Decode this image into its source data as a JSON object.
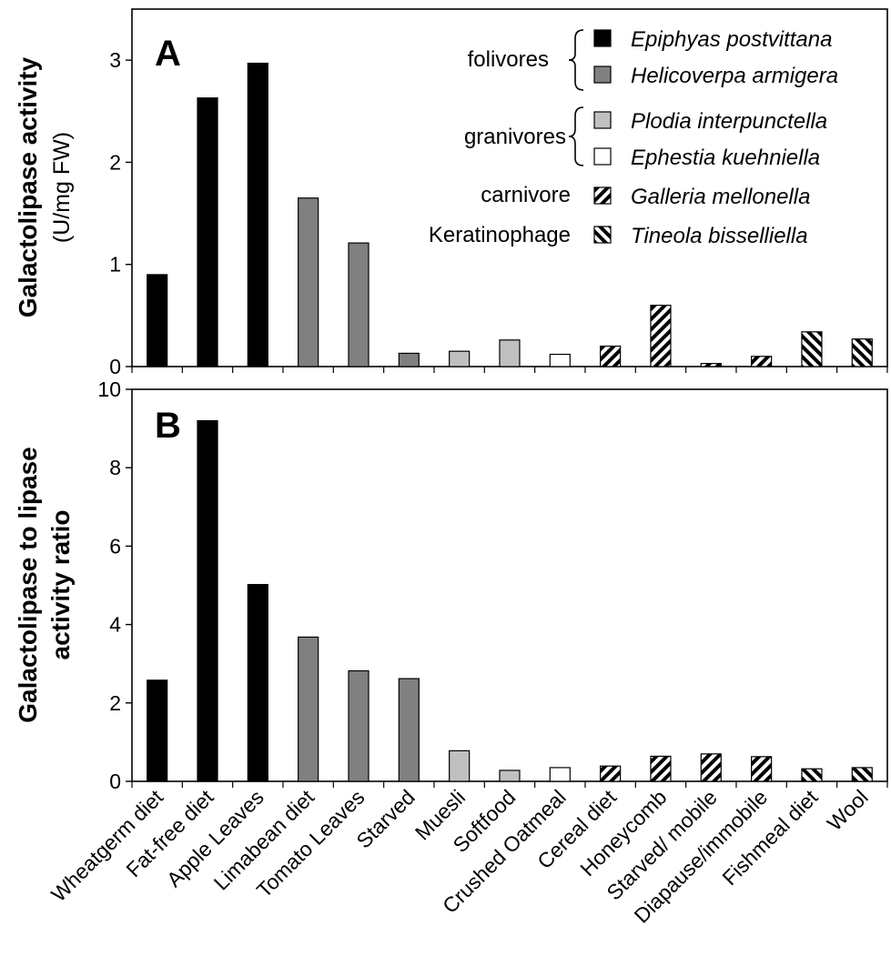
{
  "chart_data": [
    {
      "panel": "A",
      "type": "bar",
      "ylabel_line1": "Galactolipase activity",
      "ylabel_line2": "(U/mg FW)",
      "ylim": [
        0,
        3.5
      ],
      "yticks": [
        0,
        1,
        2,
        3
      ],
      "categories": [
        "Wheatgerm diet",
        "Fat-free diet",
        "Apple Leaves",
        "Limabean diet",
        "Tomato Leaves",
        "Starved",
        "Muesli",
        "Softfood",
        "Crushed Oatmeal",
        "Cereal diet",
        "Honeycomb",
        "Starved/ mobile",
        "Diapause/immobile",
        "Fishmeal diet",
        "Wool"
      ],
      "values": [
        0.9,
        2.63,
        2.97,
        1.65,
        1.21,
        0.13,
        0.15,
        0.26,
        0.12,
        0.2,
        0.6,
        0.03,
        0.1,
        0.34,
        0.27
      ],
      "series_index": [
        0,
        0,
        0,
        1,
        1,
        1,
        2,
        2,
        3,
        4,
        4,
        4,
        4,
        5,
        5
      ]
    },
    {
      "panel": "B",
      "type": "bar",
      "ylabel_line1": "Galactolipase to lipase",
      "ylabel_line2": "activity ratio",
      "ylim": [
        0,
        10
      ],
      "yticks": [
        0,
        2,
        4,
        6,
        8,
        10
      ],
      "categories": [
        "Wheatgerm diet",
        "Fat-free diet",
        "Apple Leaves",
        "Limabean diet",
        "Tomato Leaves",
        "Starved",
        "Muesli",
        "Softfood",
        "Crushed Oatmeal",
        "Cereal diet",
        "Honeycomb",
        "Starved/ mobile",
        "Diapause/immobile",
        "Fishmeal diet",
        "Wool"
      ],
      "values": [
        2.58,
        9.2,
        5.02,
        3.68,
        2.82,
        2.62,
        0.78,
        0.28,
        0.35,
        0.39,
        0.64,
        0.7,
        0.63,
        0.32,
        0.35
      ],
      "series_index": [
        0,
        0,
        0,
        1,
        1,
        1,
        2,
        2,
        3,
        4,
        4,
        4,
        4,
        5,
        5
      ]
    }
  ],
  "legend": {
    "groups": [
      {
        "label": "folivores",
        "species": [
          "Epiphyas postvittana",
          "Helicoverpa armigera"
        ]
      },
      {
        "label": "granivores",
        "species": [
          "Plodia interpunctella",
          "Ephestia kuehniella"
        ]
      },
      {
        "label": "carnivore",
        "species": [
          "Galleria mellonella"
        ]
      },
      {
        "label": "Keratinophage",
        "species": [
          "Tineola bisselliella"
        ]
      }
    ]
  },
  "series_styles": [
    {
      "name": "Epiphyas postvittana",
      "fill": "#000000"
    },
    {
      "name": "Helicoverpa armigera",
      "fill": "#808080"
    },
    {
      "name": "Plodia interpunctella",
      "fill": "#c0c0c0"
    },
    {
      "name": "Ephestia kuehniella",
      "fill": "#ffffff"
    },
    {
      "name": "Galleria mellonella",
      "fill": "pattern-back-hatch"
    },
    {
      "name": "Tineola bisselliella",
      "fill": "pattern-fwd-hatch"
    }
  ]
}
